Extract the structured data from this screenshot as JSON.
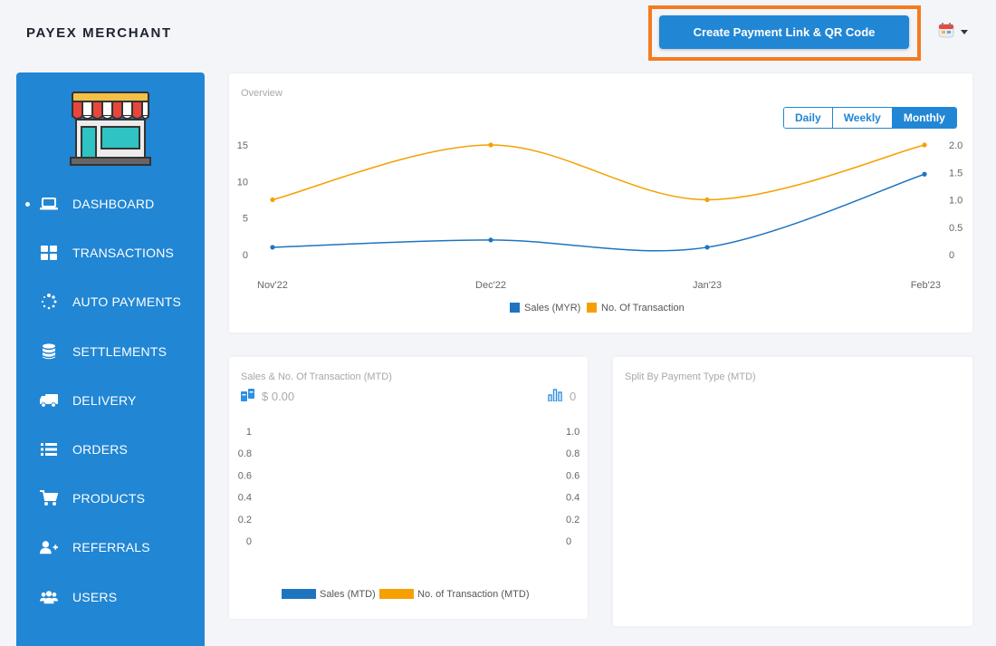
{
  "header": {
    "brand": "PAYEX MERCHANT",
    "cta_label": "Create Payment Link & QR Code",
    "user_menu_icon": "calendar-icon"
  },
  "sidebar": {
    "items": [
      {
        "label": "DASHBOARD",
        "icon": "laptop-icon",
        "active": true
      },
      {
        "label": "TRANSACTIONS",
        "icon": "grid-icon"
      },
      {
        "label": "AUTO PAYMENTS",
        "icon": "spinner-icon"
      },
      {
        "label": "SETTLEMENTS",
        "icon": "database-icon"
      },
      {
        "label": "DELIVERY",
        "icon": "truck-icon"
      },
      {
        "label": "ORDERS",
        "icon": "list-icon"
      },
      {
        "label": "PRODUCTS",
        "icon": "cart-icon"
      },
      {
        "label": "REFERRALS",
        "icon": "user-plus-icon"
      },
      {
        "label": "USERS",
        "icon": "users-icon"
      }
    ]
  },
  "overview": {
    "title": "Overview",
    "periods": [
      "Daily",
      "Weekly",
      "Monthly"
    ],
    "active_period": "Monthly"
  },
  "mtd": {
    "title": "Sales & No. Of Transaction (MTD)",
    "sales_value": "$ 0.00",
    "transactions_value": "0"
  },
  "split": {
    "title": "Split By Payment Type (MTD)"
  },
  "colors": {
    "primary": "#2186d4",
    "sales_series": "#1f74bf",
    "transaction_series": "#f5a000",
    "highlight": "#f47b20"
  },
  "chart_data": [
    {
      "type": "line",
      "categories": [
        "Nov'22",
        "Dec'22",
        "Jan'23",
        "Feb'23"
      ],
      "y_left_ticks": [
        "0",
        "5",
        "10",
        "15"
      ],
      "y_right_ticks": [
        "0",
        "0.5",
        "1.0",
        "1.5",
        "2.0"
      ],
      "ylim_left": [
        0,
        15
      ],
      "ylim_right": [
        0,
        2
      ],
      "series": [
        {
          "name": "Sales (MYR)",
          "axis": "left",
          "values": [
            1,
            2,
            1,
            11
          ]
        },
        {
          "name": "No. Of Transaction",
          "axis": "right",
          "values": [
            1,
            2,
            1,
            2
          ]
        }
      ],
      "legend": "bottom"
    },
    {
      "type": "bar",
      "categories": [],
      "y_left_ticks": [
        "0",
        "0.2",
        "0.4",
        "0.6",
        "0.8",
        "1"
      ],
      "y_right_ticks": [
        "0",
        "0.2",
        "0.4",
        "0.6",
        "0.8",
        "1.0"
      ],
      "ylim_left": [
        0,
        1
      ],
      "ylim_right": [
        0,
        1
      ],
      "series": [
        {
          "name": "Sales (MTD)",
          "values": []
        },
        {
          "name": "No. of Transaction (MTD)",
          "values": []
        }
      ],
      "legend": "bottom"
    }
  ]
}
